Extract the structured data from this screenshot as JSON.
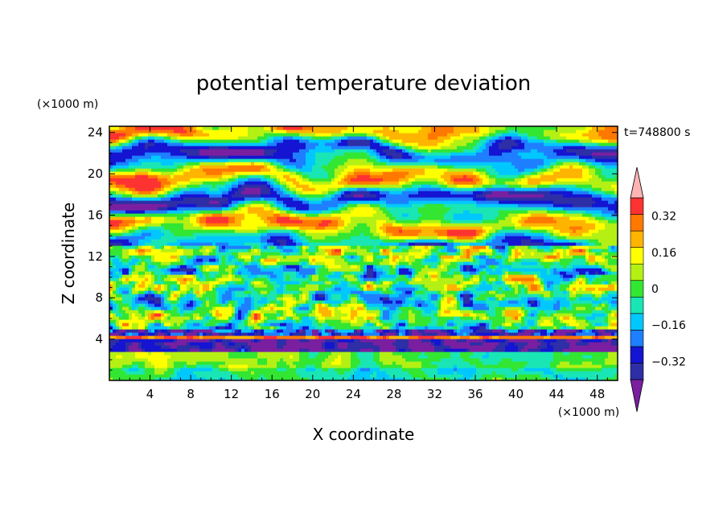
{
  "chart_data": {
    "type": "heatmap",
    "title": "potential temperature deviation",
    "xlabel": "X coordinate",
    "ylabel": "Z coordinate",
    "x_unit": "(×1000 m)",
    "z_unit": "(×1000 m)",
    "time_label": "t=748800 s",
    "xlim": [
      0,
      50
    ],
    "ylim": [
      0,
      24.6
    ],
    "xticks": [
      4,
      8,
      12,
      16,
      20,
      24,
      28,
      32,
      36,
      40,
      44,
      48
    ],
    "yticks": [
      4,
      8,
      12,
      16,
      20,
      24
    ],
    "colorbar": {
      "levels": [
        -0.4,
        -0.32,
        -0.24,
        -0.16,
        -0.08,
        0,
        0.08,
        0.16,
        0.24,
        0.32,
        0.4
      ],
      "tick_labels": [
        "0.32",
        "0.16",
        "0",
        "−0.16",
        "−0.32"
      ],
      "tick_values": [
        0.32,
        0.16,
        0,
        -0.16,
        -0.32
      ],
      "colors": [
        "#7a1fa0",
        "#2e2ea6",
        "#1414d2",
        "#1e7fff",
        "#00c8ff",
        "#19e6b4",
        "#32e632",
        "#b4f014",
        "#ffff00",
        "#ffb400",
        "#ff7800",
        "#ff3232",
        "#ffb4b4"
      ],
      "extend": "both"
    },
    "field_description": "Stratified turbulent pattern: pink/purple banded structure aloft (z>14), mixed small-scale eddies mid-levels, sharp layer near z≈3-4, green/yellow near surface"
  }
}
